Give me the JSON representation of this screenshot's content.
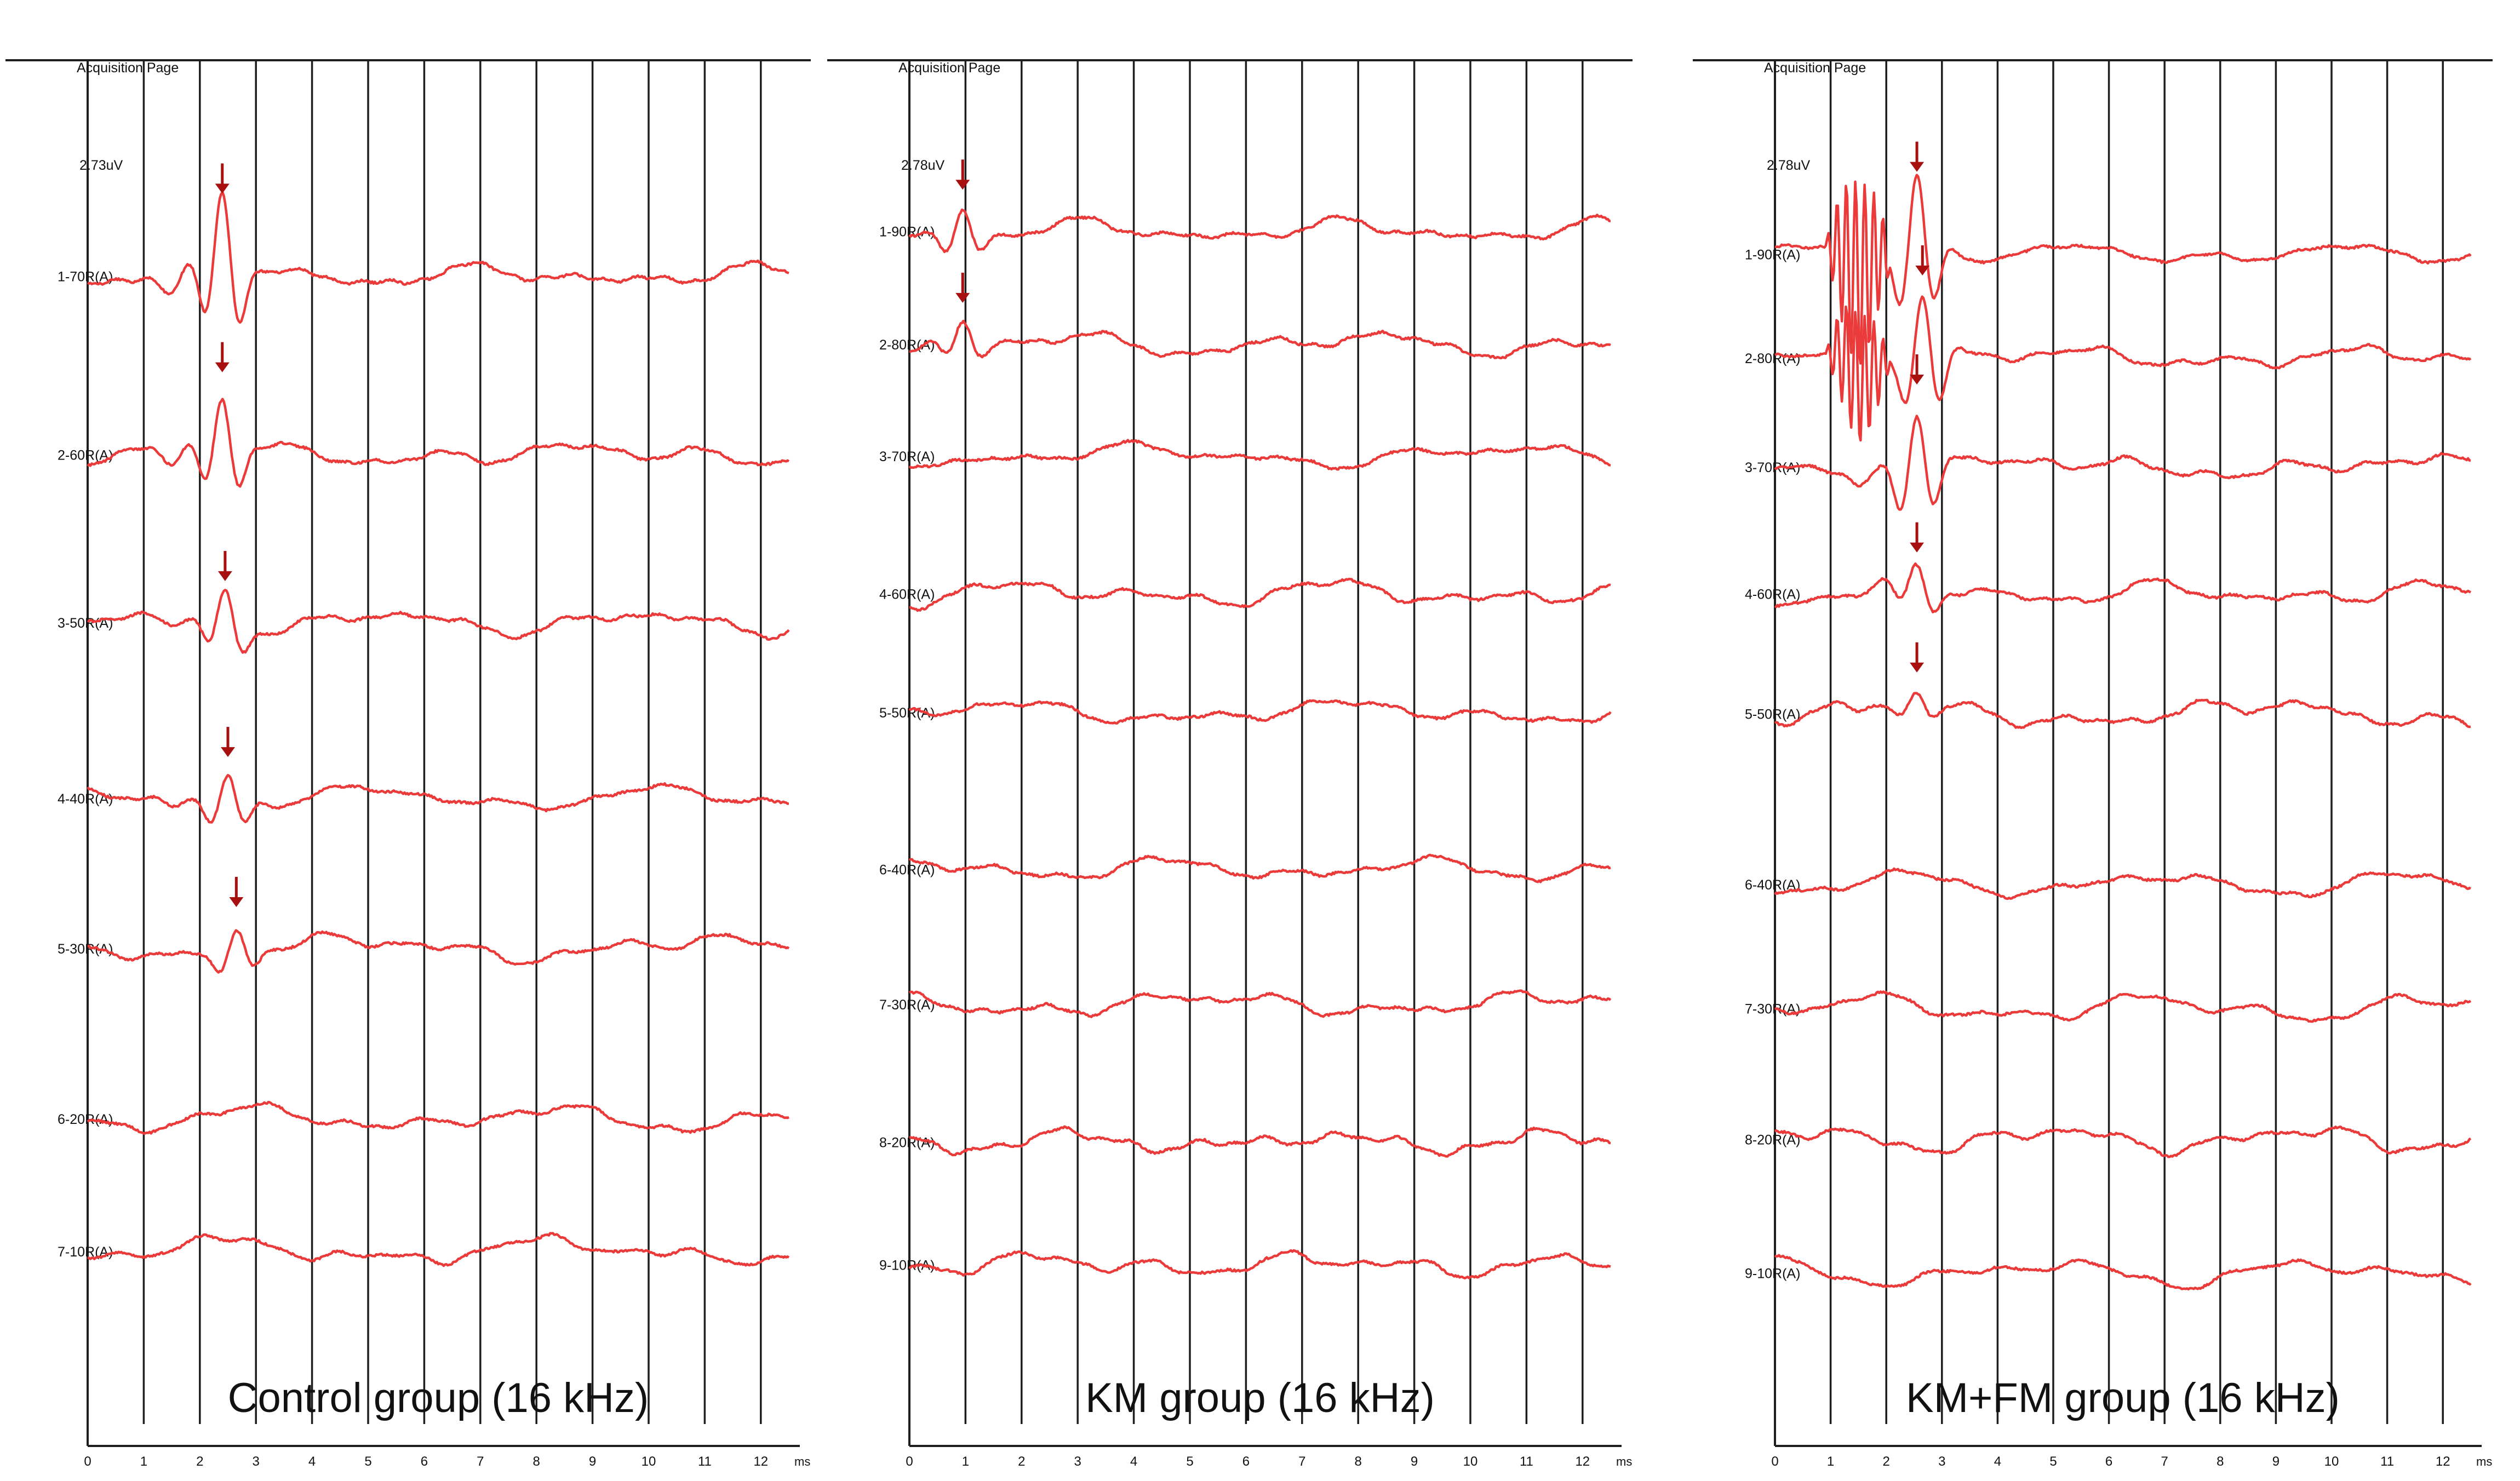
{
  "colors": {
    "trace": "#ea3a3a",
    "arrow": "#a80f0f",
    "grid": "#1e1e1e",
    "text": "#111111"
  },
  "header_label": "Acquisition Page",
  "axis_unit": "ms",
  "chart_data": [
    {
      "type": "line",
      "title": "Control group (16 kHz)",
      "scale_label": "2.73uV",
      "xlim": [
        0,
        12.5
      ],
      "x_ticks": [
        0,
        1,
        2,
        3,
        4,
        5,
        6,
        7,
        8,
        9,
        10,
        11,
        12
      ],
      "arrow_time_ms": [
        2.4,
        2.4,
        2.45,
        2.5,
        2.65
      ],
      "traces": [
        {
          "label": "1-70R(A)",
          "baseline": 0.158,
          "amp": 1.0,
          "peak_ms": 2.4,
          "arrow_ms": 2.4,
          "seed": 11
        },
        {
          "label": "2-60R(A)",
          "baseline": 0.289,
          "amp": 0.65,
          "peak_ms": 2.4,
          "arrow_ms": 2.4,
          "seed": 12
        },
        {
          "label": "3-50R(A)",
          "baseline": 0.412,
          "amp": 0.45,
          "peak_ms": 2.45,
          "arrow_ms": 2.45,
          "seed": 13
        },
        {
          "label": "4-40R(A)",
          "baseline": 0.541,
          "amp": 0.35,
          "peak_ms": 2.5,
          "arrow_ms": 2.5,
          "seed": 14
        },
        {
          "label": "5-30R(A)",
          "baseline": 0.651,
          "amp": 0.3,
          "peak_ms": 2.65,
          "arrow_ms": 2.65,
          "seed": 15
        },
        {
          "label": "6-20R(A)",
          "baseline": 0.776,
          "amp": 0.0,
          "peak_ms": null,
          "arrow_ms": null,
          "seed": 16
        },
        {
          "label": "7-10R(A)",
          "baseline": 0.873,
          "amp": 0.0,
          "peak_ms": null,
          "arrow_ms": null,
          "seed": 17
        }
      ]
    },
    {
      "type": "line",
      "title": "KM group (16 kHz)",
      "scale_label": "2.78uV",
      "xlim": [
        0,
        12.5
      ],
      "x_ticks": [
        0,
        1,
        2,
        3,
        4,
        5,
        6,
        7,
        8,
        9,
        10,
        11,
        12
      ],
      "arrow_time_ms": [
        0.95,
        0.95
      ],
      "traces": [
        {
          "label": "1-90R(A)",
          "baseline": 0.125,
          "amp": 0.3,
          "peak_ms": 0.95,
          "arrow_ms": 0.95,
          "seed": 21
        },
        {
          "label": "2-80R(A)",
          "baseline": 0.208,
          "amp": 0.25,
          "peak_ms": 0.95,
          "arrow_ms": 0.95,
          "seed": 22
        },
        {
          "label": "3-70R(A)",
          "baseline": 0.29,
          "amp": 0.0,
          "peak_ms": null,
          "arrow_ms": null,
          "seed": 23
        },
        {
          "label": "4-60R(A)",
          "baseline": 0.391,
          "amp": 0.0,
          "peak_ms": null,
          "arrow_ms": null,
          "seed": 24
        },
        {
          "label": "5-50R(A)",
          "baseline": 0.478,
          "amp": 0.0,
          "peak_ms": null,
          "arrow_ms": null,
          "seed": 25
        },
        {
          "label": "6-40R(A)",
          "baseline": 0.593,
          "amp": 0.0,
          "peak_ms": null,
          "arrow_ms": null,
          "seed": 26
        },
        {
          "label": "7-30R(A)",
          "baseline": 0.692,
          "amp": 0.0,
          "peak_ms": null,
          "arrow_ms": null,
          "seed": 27
        },
        {
          "label": "8-20R(A)",
          "baseline": 0.793,
          "amp": 0.0,
          "peak_ms": null,
          "arrow_ms": null,
          "seed": 28
        },
        {
          "label": "9-10R(A)",
          "baseline": 0.883,
          "amp": 0.0,
          "peak_ms": null,
          "arrow_ms": null,
          "seed": 29
        }
      ]
    },
    {
      "type": "line",
      "title": "KM+FM group (16 kHz)",
      "scale_label": "2.78uV",
      "xlim": [
        0,
        12.5
      ],
      "x_ticks": [
        0,
        1,
        2,
        3,
        4,
        5,
        6,
        7,
        8,
        9,
        10,
        11,
        12
      ],
      "arrow_time_ms": [
        2.55,
        2.65,
        2.55,
        2.55,
        2.55
      ],
      "traces": [
        {
          "label": "1-90R(A)",
          "baseline": 0.142,
          "amp": 1.0,
          "peak_ms": 2.55,
          "arrow_ms": 2.55,
          "seed": 31,
          "burst": [
            0.9,
            2.1,
            1.0
          ]
        },
        {
          "label": "2-80R(A)",
          "baseline": 0.218,
          "amp": 0.8,
          "peak_ms": 2.65,
          "arrow_ms": 2.65,
          "seed": 32,
          "burst": [
            0.9,
            2.1,
            0.7
          ]
        },
        {
          "label": "3-70R(A)",
          "baseline": 0.298,
          "amp": 0.75,
          "peak_ms": 2.55,
          "arrow_ms": 2.55,
          "seed": 33
        },
        {
          "label": "4-60R(A)",
          "baseline": 0.391,
          "amp": 0.3,
          "peak_ms": 2.55,
          "arrow_ms": 2.55,
          "seed": 34
        },
        {
          "label": "5-50R(A)",
          "baseline": 0.479,
          "amp": 0.2,
          "peak_ms": 2.55,
          "arrow_ms": 2.55,
          "seed": 35
        },
        {
          "label": "6-40R(A)",
          "baseline": 0.604,
          "amp": 0.0,
          "peak_ms": null,
          "arrow_ms": null,
          "seed": 36
        },
        {
          "label": "7-30R(A)",
          "baseline": 0.695,
          "amp": 0.0,
          "peak_ms": null,
          "arrow_ms": null,
          "seed": 37
        },
        {
          "label": "8-20R(A)",
          "baseline": 0.791,
          "amp": 0.0,
          "peak_ms": null,
          "arrow_ms": null,
          "seed": 38
        },
        {
          "label": "9-10R(A)",
          "baseline": 0.889,
          "amp": 0.0,
          "peak_ms": null,
          "arrow_ms": null,
          "seed": 39
        }
      ]
    }
  ]
}
